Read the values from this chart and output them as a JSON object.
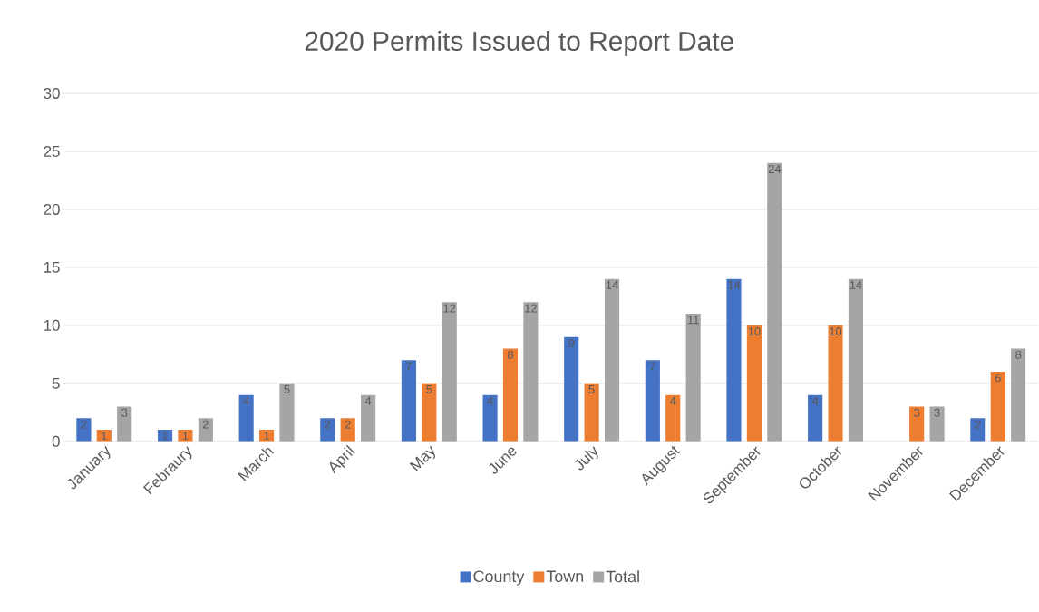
{
  "chart_data": {
    "type": "bar",
    "title": "2020 Permits Issued to Report Date",
    "categories": [
      "January",
      "Febraury",
      "March",
      "April",
      "May",
      "June",
      "July",
      "August",
      "September",
      "October",
      "November",
      "December"
    ],
    "series": [
      {
        "name": "County",
        "color": "#4472c4",
        "values": [
          2,
          1,
          4,
          2,
          7,
          4,
          9,
          7,
          14,
          4,
          null,
          2
        ]
      },
      {
        "name": "Town",
        "color": "#ed7d31",
        "values": [
          1,
          1,
          1,
          2,
          5,
          8,
          5,
          4,
          10,
          10,
          3,
          6
        ]
      },
      {
        "name": "Total",
        "color": "#a5a5a5",
        "values": [
          3,
          2,
          5,
          4,
          12,
          12,
          14,
          11,
          24,
          14,
          3,
          8
        ]
      }
    ],
    "ylim": [
      0,
      30
    ],
    "yticks": [
      0,
      5,
      10,
      15,
      20,
      25,
      30
    ],
    "grid": "y",
    "legend": "bottom",
    "data_labels": true
  }
}
